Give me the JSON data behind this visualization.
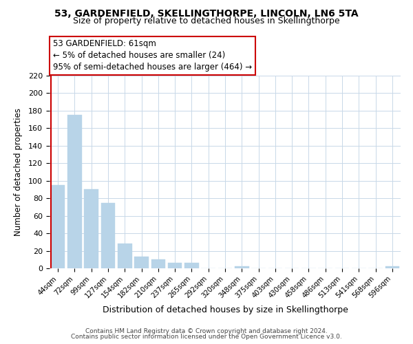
{
  "title": "53, GARDENFIELD, SKELLINGTHORPE, LINCOLN, LN6 5TA",
  "subtitle": "Size of property relative to detached houses in Skellingthorpe",
  "xlabel": "Distribution of detached houses by size in Skellingthorpe",
  "ylabel": "Number of detached properties",
  "bar_color": "#b8d4e8",
  "bar_edge_color": "#b8d4e8",
  "vline_color": "#cc0000",
  "annotation_title": "53 GARDENFIELD: 61sqm",
  "annotation_line1": "← 5% of detached houses are smaller (24)",
  "annotation_line2": "95% of semi-detached houses are larger (464) →",
  "annotation_box_color": "#ffffff",
  "annotation_box_edge_color": "#cc0000",
  "bins": [
    "44sqm",
    "72sqm",
    "99sqm",
    "127sqm",
    "154sqm",
    "182sqm",
    "210sqm",
    "237sqm",
    "265sqm",
    "292sqm",
    "320sqm",
    "348sqm",
    "375sqm",
    "403sqm",
    "430sqm",
    "458sqm",
    "486sqm",
    "513sqm",
    "541sqm",
    "568sqm",
    "596sqm"
  ],
  "values": [
    95,
    175,
    90,
    75,
    28,
    13,
    10,
    6,
    6,
    0,
    0,
    2,
    0,
    0,
    0,
    0,
    0,
    0,
    0,
    0,
    2
  ],
  "ylim": [
    0,
    220
  ],
  "yticks": [
    0,
    20,
    40,
    60,
    80,
    100,
    120,
    140,
    160,
    180,
    200,
    220
  ],
  "footer_line1": "Contains HM Land Registry data © Crown copyright and database right 2024.",
  "footer_line2": "Contains public sector information licensed under the Open Government Licence v3.0.",
  "bg_color": "#ffffff",
  "grid_color": "#c8d8e8",
  "title_fontsize": 10,
  "subtitle_fontsize": 9
}
